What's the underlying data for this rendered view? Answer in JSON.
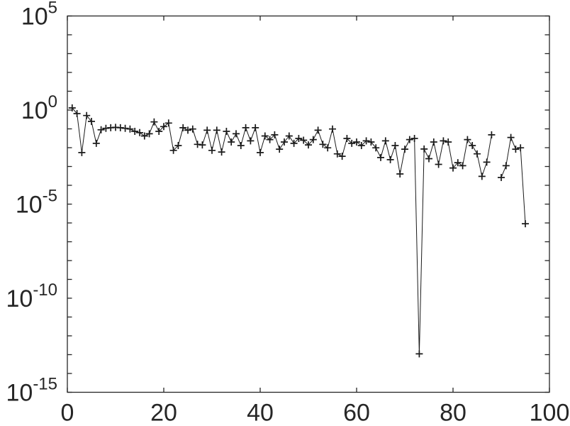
{
  "figure": {
    "background": "#ffffff",
    "frame_color": "#262626",
    "text_color": "#262626"
  },
  "chart_data": {
    "type": "line",
    "title": "",
    "xlabel": "",
    "ylabel": "",
    "scale": "semilogy",
    "grid": false,
    "legend": "none",
    "line_color": "#1a1a1a",
    "marker": "plus",
    "marker_color": "#1a1a1a",
    "xlim": [
      0,
      100
    ],
    "ylim_exponents": [
      -15,
      5
    ],
    "x_axis": {
      "ticks": [
        0,
        20,
        40,
        60,
        80,
        100
      ],
      "tick_labels": [
        "0",
        "20",
        "40",
        "60",
        "80",
        "100"
      ]
    },
    "y_axis": {
      "minor_tick_every_decade": true,
      "tick_exponents": [
        5,
        0,
        -5,
        -10,
        -15
      ],
      "tick_labels": [
        "10^5",
        "10^0",
        "10^-5",
        "10^-10",
        "10^-15"
      ]
    },
    "x": [
      1,
      2,
      3,
      4,
      5,
      6,
      7,
      8,
      9,
      10,
      11,
      12,
      13,
      14,
      15,
      16,
      17,
      18,
      19,
      20,
      21,
      22,
      23,
      24,
      25,
      26,
      27,
      28,
      29,
      30,
      31,
      32,
      33,
      34,
      35,
      36,
      37,
      38,
      39,
      40,
      41,
      42,
      43,
      44,
      45,
      46,
      47,
      48,
      49,
      50,
      51,
      52,
      53,
      54,
      55,
      56,
      57,
      58,
      59,
      60,
      61,
      62,
      63,
      64,
      65,
      66,
      67,
      68,
      69,
      70,
      71,
      72,
      73,
      74,
      75,
      76,
      77,
      78,
      79,
      80,
      81,
      82,
      83,
      84,
      85,
      86,
      87,
      88,
      89,
      90,
      91,
      92,
      93,
      94,
      95
    ],
    "values": [
      1.3,
      0.65,
      0.0055,
      0.51,
      0.25,
      0.017,
      0.089,
      0.107,
      0.115,
      0.12,
      0.115,
      0.107,
      0.098,
      0.074,
      0.063,
      0.042,
      0.055,
      0.235,
      0.074,
      0.132,
      0.204,
      0.0072,
      0.013,
      0.115,
      0.085,
      0.098,
      0.015,
      0.014,
      0.085,
      0.0072,
      0.085,
      0.0059,
      0.074,
      0.02,
      0.055,
      0.013,
      0.115,
      0.023,
      0.115,
      0.0055,
      0.042,
      0.027,
      0.048,
      0.0083,
      0.02,
      0.042,
      0.017,
      0.031,
      0.025,
      0.014,
      0.027,
      0.085,
      0.015,
      0.0098,
      0.098,
      0.0047,
      0.0035,
      0.031,
      0.017,
      0.02,
      0.013,
      0.023,
      0.02,
      0.0098,
      0.003,
      0.023,
      0.0023,
      0.013,
      0.0004,
      0.0083,
      0.027,
      0.031,
      1.1e-13,
      0.0085,
      0.0026,
      0.02,
      0.0013,
      0.023,
      0.02,
      0.00083,
      0.0016,
      0.0011,
      0.027,
      0.013,
      0.0047,
      0.0003,
      0.0017,
      0.048,
      null,
      0.00026,
      0.0011,
      0.035,
      0.0083,
      0.0098,
      9.1e-07
    ]
  }
}
